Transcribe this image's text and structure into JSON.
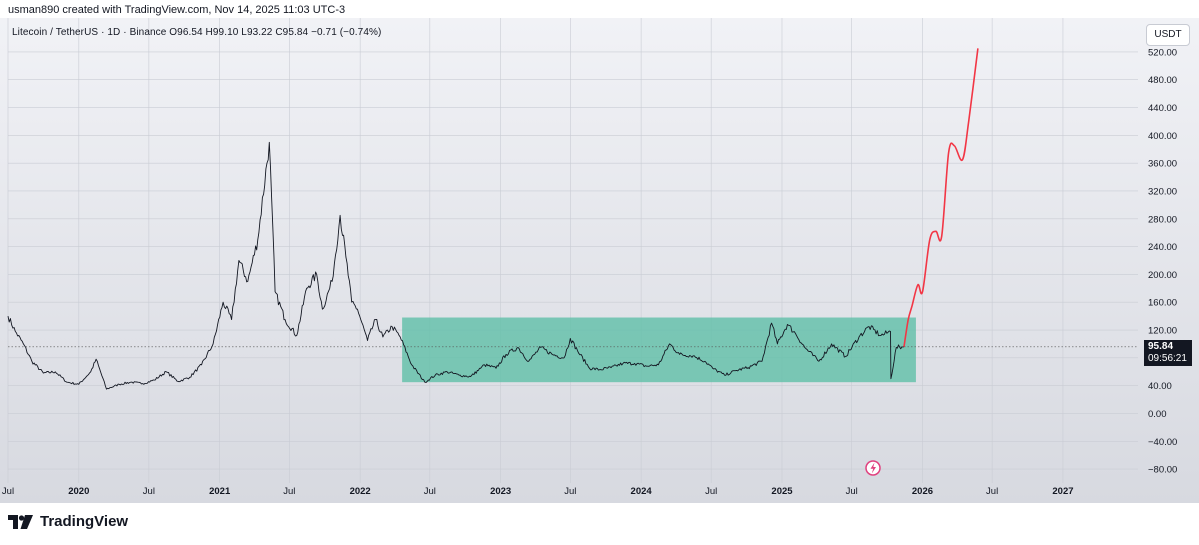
{
  "header": {
    "caption": "usman890 created with TradingView.com, Nov 14, 2025 11:03 UTC-3"
  },
  "legend": {
    "symbol_line": "Litecoin / TetherUS · 1D · Binance  O96.54  H99.10  L93.22  C95.84  −0.71 (−0.74%)"
  },
  "currency_button": "USDT",
  "price_tag": {
    "price": "95.84",
    "countdown": "09:56:21"
  },
  "footer": {
    "brand": "TradingView"
  },
  "colors": {
    "candles": "#131722",
    "projection": "#f23645",
    "range_box": "#5fbfa7",
    "current_line": "#555555",
    "event_icon": "#e0407f"
  },
  "icons": {
    "brand_logo": "tradingview-logo-icon",
    "event": "lightning-icon"
  },
  "chart_data": {
    "type": "line",
    "title": "",
    "xlabel": "",
    "ylabel": "",
    "y_unit": "USDT",
    "ylim": [
      -100,
      540
    ],
    "grid": true,
    "yticks": [
      -80,
      -40,
      0,
      40,
      80,
      120,
      160,
      200,
      240,
      280,
      320,
      360,
      400,
      440,
      480,
      520
    ],
    "ytick_labels": [
      "−80.00",
      "−40.00",
      "0.00",
      "40.00",
      "80.00",
      "120.00",
      "160.00",
      "200.00",
      "240.00",
      "280.00",
      "320.00",
      "360.00",
      "400.00",
      "440.00",
      "480.00",
      "520.00"
    ],
    "xticks": [
      {
        "date": "2019-07-01",
        "label": "Jul"
      },
      {
        "date": "2020-01-01",
        "label": "2020"
      },
      {
        "date": "2020-07-01",
        "label": "Jul"
      },
      {
        "date": "2021-01-01",
        "label": "2021"
      },
      {
        "date": "2021-07-01",
        "label": "Jul"
      },
      {
        "date": "2022-01-01",
        "label": "2022"
      },
      {
        "date": "2022-07-01",
        "label": "Jul"
      },
      {
        "date": "2023-01-01",
        "label": "2023"
      },
      {
        "date": "2023-07-01",
        "label": "Jul"
      },
      {
        "date": "2024-01-01",
        "label": "2024"
      },
      {
        "date": "2024-07-01",
        "label": "Jul"
      },
      {
        "date": "2025-01-01",
        "label": "2025"
      },
      {
        "date": "2025-07-01",
        "label": "Jul"
      },
      {
        "date": "2026-01-01",
        "label": "2026"
      },
      {
        "date": "2026-07-01",
        "label": "Jul"
      },
      {
        "date": "2027-01-01",
        "label": "2027"
      }
    ],
    "xlim": [
      "2019-07-01",
      "2027-07-15"
    ],
    "current_price": 95.84,
    "series": [
      {
        "name": "",
        "kind": "price",
        "points": [
          [
            "2019-07-01",
            140
          ],
          [
            "2019-07-20",
            118
          ],
          [
            "2019-08-10",
            100
          ],
          [
            "2019-09-01",
            75
          ],
          [
            "2019-10-01",
            58
          ],
          [
            "2019-11-01",
            60
          ],
          [
            "2019-12-01",
            45
          ],
          [
            "2020-01-01",
            42
          ],
          [
            "2020-02-01",
            60
          ],
          [
            "2020-02-15",
            78
          ],
          [
            "2020-03-13",
            35
          ],
          [
            "2020-04-15",
            42
          ],
          [
            "2020-05-15",
            45
          ],
          [
            "2020-06-15",
            43
          ],
          [
            "2020-07-15",
            48
          ],
          [
            "2020-08-15",
            60
          ],
          [
            "2020-09-15",
            46
          ],
          [
            "2020-10-15",
            52
          ],
          [
            "2020-11-15",
            70
          ],
          [
            "2020-12-15",
            100
          ],
          [
            "2021-01-10",
            160
          ],
          [
            "2021-02-01",
            135
          ],
          [
            "2021-02-20",
            220
          ],
          [
            "2021-03-15",
            190
          ],
          [
            "2021-04-10",
            250
          ],
          [
            "2021-05-10",
            390
          ],
          [
            "2021-05-25",
            175
          ],
          [
            "2021-06-20",
            135
          ],
          [
            "2021-07-20",
            112
          ],
          [
            "2021-08-15",
            180
          ],
          [
            "2021-09-10",
            200
          ],
          [
            "2021-09-25",
            150
          ],
          [
            "2021-10-20",
            190
          ],
          [
            "2021-11-10",
            285
          ],
          [
            "2021-11-25",
            225
          ],
          [
            "2021-12-10",
            160
          ],
          [
            "2021-12-25",
            150
          ],
          [
            "2022-01-20",
            105
          ],
          [
            "2022-02-10",
            135
          ],
          [
            "2022-03-01",
            110
          ],
          [
            "2022-03-25",
            125
          ],
          [
            "2022-04-15",
            110
          ],
          [
            "2022-05-15",
            70
          ],
          [
            "2022-06-18",
            45
          ],
          [
            "2022-07-15",
            55
          ],
          [
            "2022-08-15",
            60
          ],
          [
            "2022-09-15",
            55
          ],
          [
            "2022-10-15",
            53
          ],
          [
            "2022-11-10",
            65
          ],
          [
            "2022-11-20",
            70
          ],
          [
            "2022-12-20",
            65
          ],
          [
            "2023-01-15",
            85
          ],
          [
            "2023-02-15",
            95
          ],
          [
            "2023-03-15",
            75
          ],
          [
            "2023-04-15",
            95
          ],
          [
            "2023-05-15",
            85
          ],
          [
            "2023-06-15",
            80
          ],
          [
            "2023-07-01",
            108
          ],
          [
            "2023-07-20",
            90
          ],
          [
            "2023-08-20",
            65
          ],
          [
            "2023-09-15",
            63
          ],
          [
            "2023-10-15",
            66
          ],
          [
            "2023-11-15",
            72
          ],
          [
            "2023-12-15",
            72
          ],
          [
            "2024-01-15",
            68
          ],
          [
            "2024-02-15",
            70
          ],
          [
            "2024-03-15",
            100
          ],
          [
            "2024-04-10",
            85
          ],
          [
            "2024-05-15",
            83
          ],
          [
            "2024-06-15",
            75
          ],
          [
            "2024-07-05",
            65
          ],
          [
            "2024-08-05",
            55
          ],
          [
            "2024-09-05",
            62
          ],
          [
            "2024-10-05",
            66
          ],
          [
            "2024-11-10",
            75
          ],
          [
            "2024-12-05",
            130
          ],
          [
            "2024-12-20",
            100
          ],
          [
            "2025-01-15",
            128
          ],
          [
            "2025-02-05",
            115
          ],
          [
            "2025-03-01",
            95
          ],
          [
            "2025-04-07",
            75
          ],
          [
            "2025-05-10",
            100
          ],
          [
            "2025-06-15",
            82
          ],
          [
            "2025-07-20",
            110
          ],
          [
            "2025-08-15",
            125
          ],
          [
            "2025-09-15",
            112
          ],
          [
            "2025-10-10",
            118
          ],
          [
            "2025-10-11",
            50
          ],
          [
            "2025-10-25",
            95
          ],
          [
            "2025-11-14",
            95.84
          ]
        ]
      },
      {
        "name": "",
        "kind": "projection",
        "points": [
          [
            "2025-11-14",
            96
          ],
          [
            "2025-11-25",
            135
          ],
          [
            "2025-12-05",
            155
          ],
          [
            "2025-12-20",
            185
          ],
          [
            "2026-01-01",
            175
          ],
          [
            "2026-01-20",
            250
          ],
          [
            "2026-02-05",
            262
          ],
          [
            "2026-02-20",
            255
          ],
          [
            "2026-03-10",
            375
          ],
          [
            "2026-03-25",
            385
          ],
          [
            "2026-04-15",
            365
          ],
          [
            "2026-05-01",
            420
          ],
          [
            "2026-05-25",
            525
          ]
        ]
      }
    ],
    "range_box": {
      "from": "2022-04-20",
      "to": "2025-12-15",
      "low": 45,
      "high": 138
    }
  }
}
